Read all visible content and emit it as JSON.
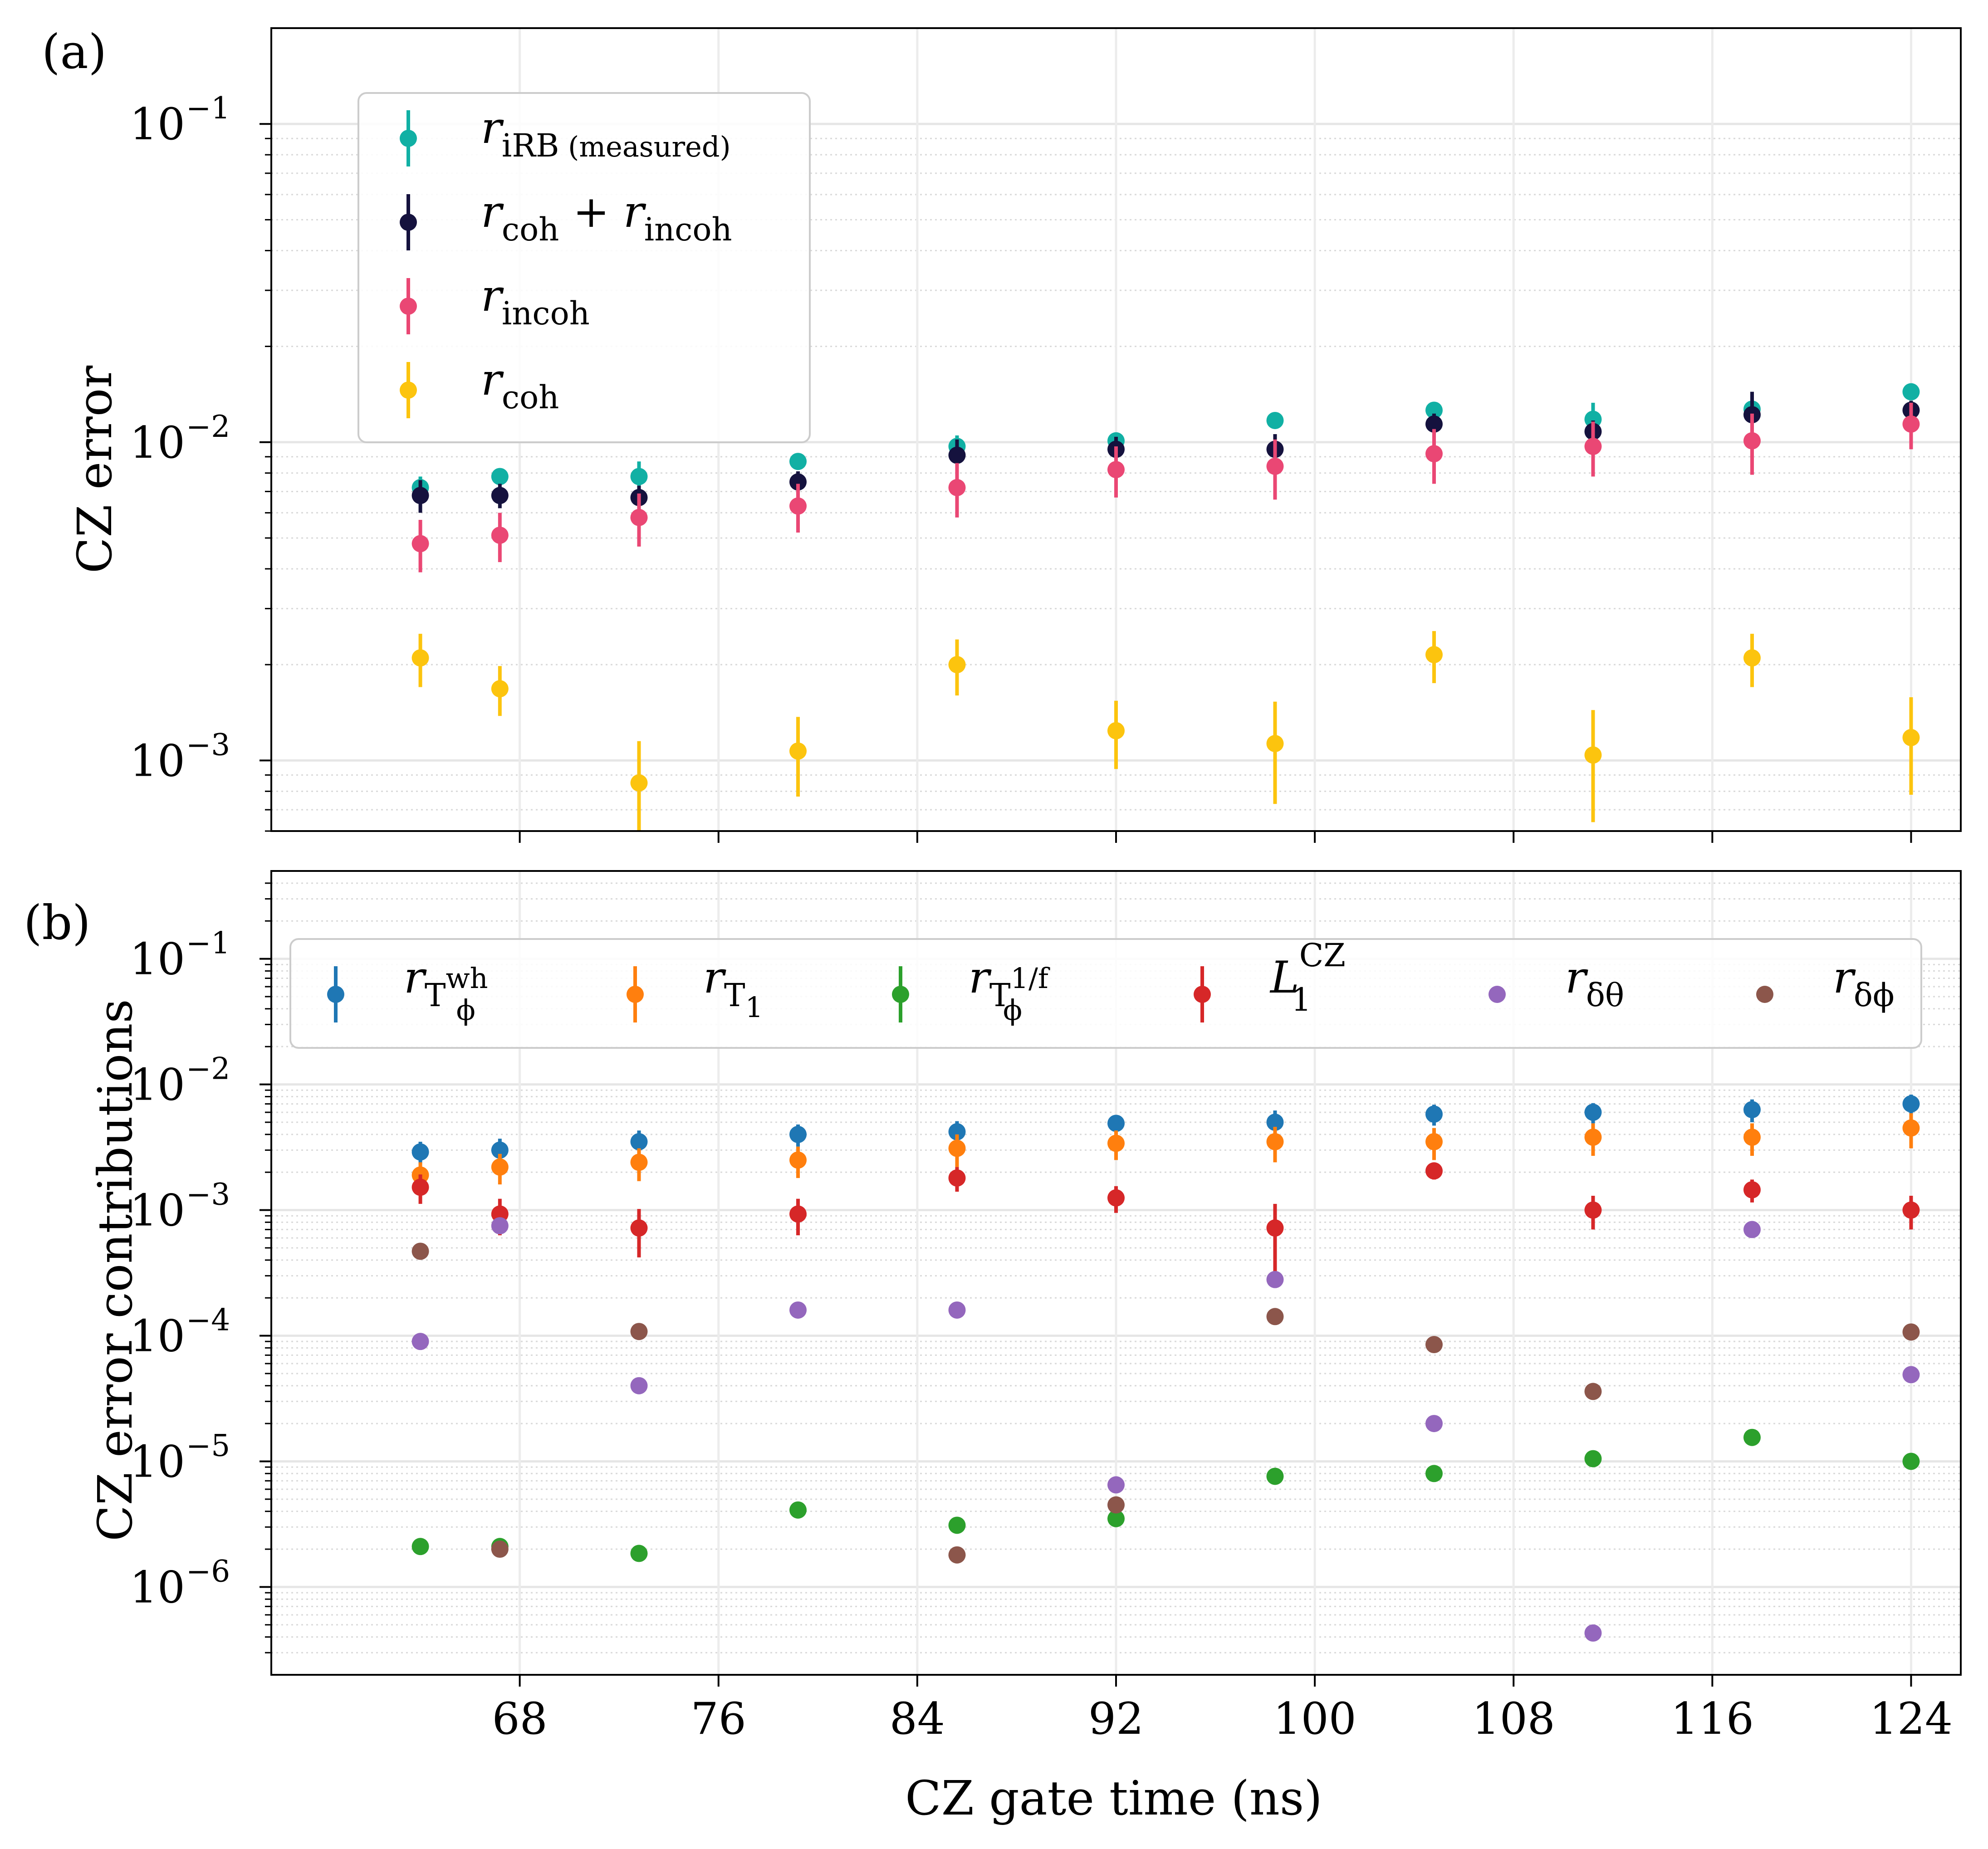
{
  "chart_data": [
    {
      "panel": "(a)",
      "type": "scatter",
      "scale": "log",
      "ylabel": "CZ error",
      "xlabel": "",
      "xlim": [
        58,
        126
      ],
      "ylim": [
        0.0006,
        0.2
      ],
      "xticks": [
        68,
        76,
        84,
        92,
        100,
        108,
        116,
        124
      ],
      "yticks": [
        {
          "value": 0.1,
          "base": "10",
          "exp": "−1"
        },
        {
          "value": 0.01,
          "base": "10",
          "exp": "−2"
        },
        {
          "value": 0.001,
          "base": "10",
          "exp": "−3"
        }
      ],
      "x": [
        64,
        67.2,
        72.8,
        79.2,
        85.6,
        92,
        98.4,
        104.8,
        111.2,
        117.6,
        124
      ],
      "legend_position": "upper-left",
      "series": [
        {
          "name": "r_iRB (measured)",
          "legend_main": "r",
          "legend_sub": "iRB",
          "legend_note": "(measured)",
          "color": "#11b0a4",
          "values": [
            0.0072,
            0.0078,
            0.0078,
            0.0087,
            0.0097,
            0.0101,
            0.0117,
            0.0126,
            0.0118,
            0.0127,
            0.0144
          ],
          "err_low": [
            0.0006,
            0.0004,
            0.0009,
            0.0004,
            0.0008,
            0.0006,
            0.0006,
            0.0005,
            0.0015,
            0.0012,
            0.0006
          ],
          "err_high": [
            0.0006,
            0.0004,
            0.0009,
            0.0004,
            0.0008,
            0.0006,
            0.0006,
            0.0005,
            0.0015,
            0.0012,
            0.0006
          ]
        },
        {
          "name": "r_coh + r_incoh",
          "legend_main": "r",
          "legend_sub": "coh",
          "legend_plus": "+",
          "legend_main2": "r",
          "legend_sub2": "incoh",
          "color": "#15123e",
          "values": [
            0.0068,
            0.0068,
            0.0067,
            0.0075,
            0.0091,
            0.0095,
            0.0095,
            0.0114,
            0.0108,
            0.0122,
            0.0126
          ],
          "err_low": [
            0.0008,
            0.0006,
            0.0006,
            0.0006,
            0.0011,
            0.0009,
            0.0011,
            0.0009,
            0.0009,
            0.0022,
            0.0009
          ],
          "err_high": [
            0.0008,
            0.0006,
            0.0006,
            0.0006,
            0.0011,
            0.0009,
            0.0011,
            0.0009,
            0.0009,
            0.0022,
            0.0009
          ]
        },
        {
          "name": "r_incoh",
          "legend_main": "r",
          "legend_sub": "incoh",
          "color": "#ea4774",
          "values": [
            0.0048,
            0.0051,
            0.0058,
            0.0063,
            0.0072,
            0.0082,
            0.0084,
            0.0092,
            0.0097,
            0.0101,
            0.0114
          ],
          "err_low": [
            0.0009,
            0.0009,
            0.0011,
            0.0011,
            0.0014,
            0.0015,
            0.0018,
            0.0018,
            0.0019,
            0.0022,
            0.0019
          ],
          "err_high": [
            0.0009,
            0.0009,
            0.0011,
            0.0011,
            0.0014,
            0.0015,
            0.0018,
            0.0018,
            0.0019,
            0.0022,
            0.0019
          ]
        },
        {
          "name": "r_coh",
          "legend_main": "r",
          "legend_sub": "coh",
          "color": "#fcc40e",
          "values": [
            0.0021,
            0.00168,
            0.00085,
            0.00107,
            0.002,
            0.00124,
            0.00113,
            0.00215,
            0.00104,
            0.0021,
            0.00118
          ],
          "err_low": [
            0.0004,
            0.0003,
            0.0003,
            0.0003,
            0.0004,
            0.0003,
            0.0004,
            0.0004,
            0.0004,
            0.0004,
            0.0004
          ],
          "err_high": [
            0.0004,
            0.0003,
            0.0003,
            0.0003,
            0.0004,
            0.0003,
            0.0004,
            0.0004,
            0.0004,
            0.0004,
            0.0004
          ]
        }
      ]
    },
    {
      "panel": "(b)",
      "type": "scatter",
      "scale": "log",
      "ylabel": "CZ error contributions",
      "xlabel": "CZ gate time (ns)",
      "xlim": [
        58,
        126
      ],
      "ylim": [
        2e-07,
        0.5
      ],
      "xticks": [
        68,
        76,
        84,
        92,
        100,
        108,
        116,
        124
      ],
      "yticks": [
        {
          "value": 0.1,
          "base": "10",
          "exp": "−1"
        },
        {
          "value": 0.01,
          "base": "10",
          "exp": "−2"
        },
        {
          "value": 0.001,
          "base": "10",
          "exp": "−3"
        },
        {
          "value": 0.0001,
          "base": "10",
          "exp": "−4"
        },
        {
          "value": 1e-05,
          "base": "10",
          "exp": "−5"
        },
        {
          "value": 1e-06,
          "base": "10",
          "exp": "−6"
        }
      ],
      "x": [
        64,
        67.2,
        72.8,
        79.2,
        85.6,
        92,
        98.4,
        104.8,
        111.2,
        117.6,
        124
      ],
      "legend_position": "upper, single row",
      "series": [
        {
          "name": "r_{T_phi^wh}",
          "legend_main": "r",
          "legend_sub": "T",
          "legend_subsub": "ϕ",
          "legend_supsub": "wh",
          "color": "#1f77b4",
          "values": [
            0.0029,
            0.003,
            0.0035,
            0.004,
            0.0042,
            0.0049,
            0.005,
            0.0058,
            0.006,
            0.0063,
            0.007
          ],
          "err_low": [
            0.0006,
            0.0007,
            0.0008,
            0.0008,
            0.0009,
            0.0008,
            0.0012,
            0.0011,
            0.0011,
            0.0013,
            0.0013
          ],
          "err_high": [
            0.0006,
            0.0007,
            0.0008,
            0.0008,
            0.0009,
            0.0008,
            0.0012,
            0.0011,
            0.0011,
            0.0013,
            0.0013
          ]
        },
        {
          "name": "r_{T_1}",
          "legend_main": "r",
          "legend_sub": "T",
          "legend_subsub": "1",
          "color": "#ff7f0e",
          "values": [
            0.0019,
            0.0022,
            0.0024,
            0.0025,
            0.0031,
            0.0034,
            0.0035,
            0.0035,
            0.0038,
            0.0038,
            0.0045
          ],
          "err_low": [
            0.0005,
            0.0006,
            0.0007,
            0.0007,
            0.0009,
            0.0009,
            0.0011,
            0.001,
            0.0011,
            0.0011,
            0.0014
          ],
          "err_high": [
            0.0005,
            0.0006,
            0.0007,
            0.0007,
            0.0009,
            0.0009,
            0.0011,
            0.001,
            0.0011,
            0.0011,
            0.0014
          ]
        },
        {
          "name": "r_{T_phi^1/f}",
          "legend_main": "r",
          "legend_sub": "T",
          "legend_subsub": "ϕ",
          "legend_supsub": "1/f",
          "color": "#2ca02c",
          "values": [
            2.1e-06,
            2.1e-06,
            1.85e-06,
            4.1e-06,
            3.1e-06,
            3.5e-06,
            7.6e-06,
            8e-06,
            1.05e-05,
            1.55e-05,
            1e-05
          ],
          "err_low": [
            1e-07,
            1e-07,
            1e-07,
            3e-07,
            1e-07,
            3e-07,
            3e-07,
            3e-07,
            5e-07,
            1.5e-06,
            5e-07
          ],
          "err_high": [
            1e-07,
            1e-07,
            1e-07,
            3e-07,
            1e-07,
            3e-07,
            3e-07,
            3e-07,
            5e-07,
            1.5e-06,
            5e-07
          ]
        },
        {
          "name": "L_1^CZ",
          "legend_main": "L",
          "legend_sub": "1",
          "legend_sup": "CZ",
          "color": "#d62728",
          "values": [
            0.00152,
            0.00093,
            0.00072,
            0.00093,
            0.0018,
            0.00125,
            0.00072,
            0.00205,
            0.001,
            0.00145,
            0.001
          ],
          "err_low": [
            0.0004,
            0.0003,
            0.0003,
            0.0003,
            0.0004,
            0.0003,
            0.0004,
            0.0003,
            0.0003,
            0.0003,
            0.0003
          ],
          "err_high": [
            0.0004,
            0.0003,
            0.0003,
            0.0003,
            0.0004,
            0.0003,
            0.0004,
            0.0003,
            0.0003,
            0.0003,
            0.0003
          ]
        },
        {
          "name": "r_{delta theta}",
          "legend_main": "r",
          "legend_sub": "δθ",
          "color": "#9467bd",
          "values": [
            9e-05,
            0.00075,
            4e-05,
            0.00016,
            0.00016,
            6.5e-06,
            0.00028,
            2e-05,
            4.3e-07,
            0.0007,
            4.9e-05
          ]
        },
        {
          "name": "r_{delta phi}",
          "legend_main": "r",
          "legend_sub": "δϕ",
          "color": "#8c564b",
          "values": [
            0.00047,
            2e-06,
            0.000108,
            null,
            1.8e-06,
            4.5e-06,
            0.000142,
            8.5e-05,
            3.6e-05,
            null,
            0.000107
          ]
        }
      ]
    }
  ]
}
